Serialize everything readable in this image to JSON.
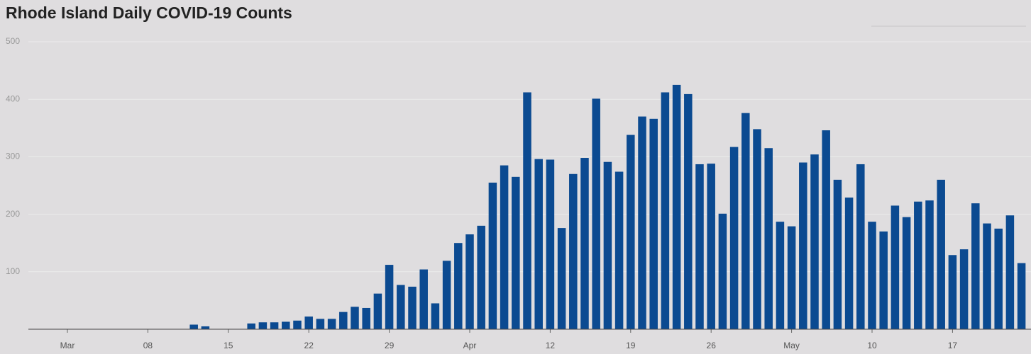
{
  "chart_data": {
    "type": "bar",
    "title": "Rhode Island Daily COVID-19 Counts",
    "categories": [
      "Mar",
      null,
      null,
      null,
      null,
      null,
      null,
      "08",
      null,
      null,
      null,
      null,
      null,
      null,
      "15",
      null,
      null,
      null,
      null,
      null,
      null,
      "22",
      null,
      null,
      null,
      null,
      null,
      null,
      "29",
      null,
      null,
      null,
      null,
      null,
      null,
      "Apr",
      null,
      null,
      null,
      null,
      null,
      null,
      "12",
      null,
      null,
      null,
      null,
      null,
      null,
      "19",
      null,
      null,
      null,
      null,
      null,
      null,
      "26",
      null,
      null,
      null,
      null,
      null,
      null,
      "May",
      null,
      null,
      null,
      null,
      null,
      null,
      "10",
      null,
      null,
      null,
      null,
      null,
      null,
      "17",
      null,
      null,
      null,
      null,
      null,
      null
    ],
    "values": [
      null,
      null,
      null,
      null,
      null,
      null,
      null,
      null,
      null,
      null,
      null,
      8,
      5,
      null,
      null,
      null,
      10,
      12,
      12,
      13,
      15,
      22,
      18,
      18,
      30,
      39,
      37,
      62,
      112,
      77,
      74,
      104,
      45,
      119,
      150,
      165,
      180,
      255,
      285,
      265,
      412,
      296,
      295,
      176,
      270,
      298,
      401,
      291,
      274,
      338,
      370,
      366,
      412,
      425,
      409,
      287,
      288,
      201,
      317,
      376,
      348,
      315,
      187,
      179,
      290,
      304,
      346,
      260,
      229,
      287,
      187,
      170,
      215,
      195,
      222,
      224,
      260,
      129,
      139,
      219,
      184,
      175,
      198,
      115
    ],
    "color": "#0b4a91",
    "ylim": [
      0,
      500
    ],
    "yticks": [
      100,
      200,
      300,
      400,
      500
    ],
    "grid": true
  }
}
